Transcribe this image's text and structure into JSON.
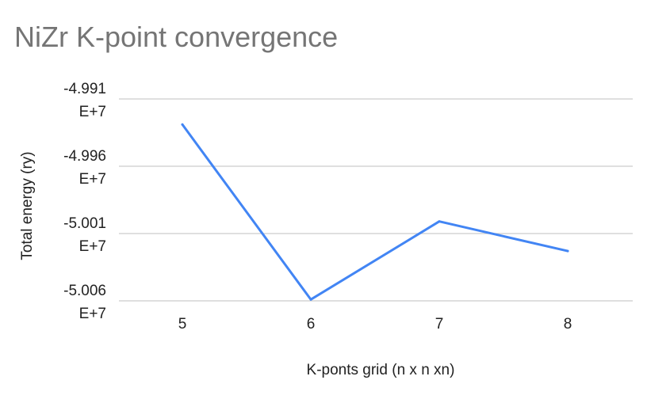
{
  "chart_data": {
    "type": "line",
    "title": "NiZr K-point convergence",
    "xlabel": "K-ponts grid (n x n xn)",
    "ylabel": "Total energy (ry)",
    "categories": [
      "5",
      "6",
      "7",
      "8"
    ],
    "series": [
      {
        "values": [
          -49929000,
          -50059000,
          -50001000,
          -50023000
        ]
      }
    ],
    "ylim": [
      -50060000,
      -49910000
    ],
    "y_ticks": [
      {
        "value": -49910000,
        "line1": "-4.991",
        "line2": "E+7"
      },
      {
        "value": -49960000,
        "line1": "-4.996",
        "line2": "E+7"
      },
      {
        "value": -50010000,
        "line1": "-5.001",
        "line2": "E+7"
      },
      {
        "value": -50060000,
        "line1": "-5.006",
        "line2": "E+7"
      }
    ],
    "grid": true,
    "legend": "none",
    "line_color": "#4285f4",
    "grid_color": "#cccccc"
  }
}
